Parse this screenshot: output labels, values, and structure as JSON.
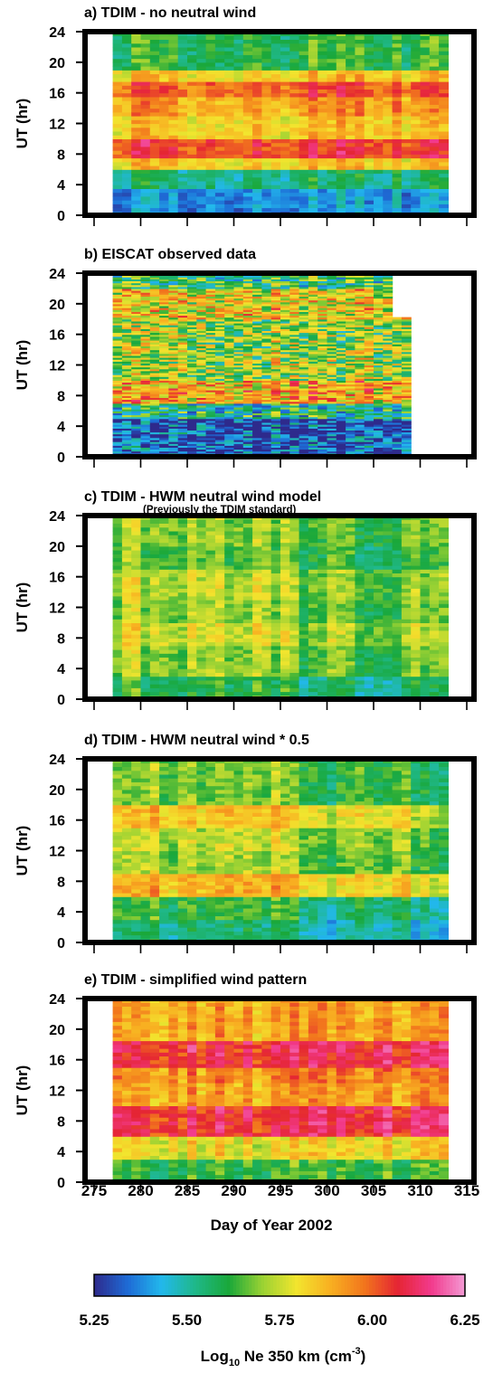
{
  "chart_data": [
    {
      "type": "heatmap",
      "title": "a)  TDIM - no neutral wind",
      "subtitle": "",
      "ylabel": "UT  (hr)",
      "xlim": [
        275,
        315
      ],
      "ylim": [
        0,
        24
      ],
      "day_range": [
        277,
        313
      ],
      "yticks": [
        "0",
        "4",
        "8",
        "12",
        "16",
        "20",
        "24"
      ],
      "bands": [
        {
          "from": 0,
          "to": 3.5,
          "level": 5.4
        },
        {
          "from": 3.5,
          "to": 6,
          "level": 5.55
        },
        {
          "from": 6,
          "to": 7.5,
          "level": 5.85
        },
        {
          "from": 7.5,
          "to": 10,
          "level": 6.05
        },
        {
          "from": 10,
          "to": 13,
          "level": 5.85
        },
        {
          "from": 13,
          "to": 15.5,
          "level": 5.92
        },
        {
          "from": 15.5,
          "to": 17.5,
          "level": 6.02
        },
        {
          "from": 17.5,
          "to": 19,
          "level": 5.85
        },
        {
          "from": 19,
          "to": 24,
          "level": 5.62
        }
      ],
      "observed_gap": false
    },
    {
      "type": "heatmap",
      "title": "b)  EISCAT  observed data",
      "subtitle": "",
      "ylabel": "UT  (hr)",
      "xlim": [
        275,
        315
      ],
      "ylim": [
        0,
        24
      ],
      "day_range": [
        277,
        309
      ],
      "yticks": [
        "0",
        "4",
        "8",
        "12",
        "16",
        "20",
        "24"
      ],
      "bands": [
        {
          "from": 0,
          "to": 5,
          "level": 5.32
        },
        {
          "from": 5,
          "to": 7,
          "level": 5.55
        },
        {
          "from": 7,
          "to": 10,
          "level": 5.88
        },
        {
          "from": 10,
          "to": 14,
          "level": 5.72
        },
        {
          "from": 14,
          "to": 18,
          "level": 5.7
        },
        {
          "from": 18,
          "to": 22,
          "level": 5.82
        },
        {
          "from": 22,
          "to": 24,
          "level": 5.6
        }
      ],
      "observed_gap": true
    },
    {
      "type": "heatmap",
      "title": "c)  TDIM - HWM neutral wind model",
      "subtitle": "(Previously the TDIM standard)",
      "ylabel": "UT  (hr)",
      "xlim": [
        275,
        315
      ],
      "ylim": [
        0,
        24
      ],
      "day_range": [
        277,
        313
      ],
      "yticks": [
        "0",
        "4",
        "8",
        "12",
        "16",
        "20",
        "24"
      ],
      "bands": [
        {
          "from": 0,
          "to": 3,
          "level": 5.62
        },
        {
          "from": 3,
          "to": 7,
          "level": 5.72
        },
        {
          "from": 7,
          "to": 10,
          "level": 5.78
        },
        {
          "from": 10,
          "to": 13,
          "level": 5.72
        },
        {
          "from": 13,
          "to": 17,
          "level": 5.76
        },
        {
          "from": 17,
          "to": 20,
          "level": 5.68
        },
        {
          "from": 20,
          "to": 24,
          "level": 5.72
        }
      ],
      "observed_gap": false
    },
    {
      "type": "heatmap",
      "title": "d)  TDIM - HWM neutral wind * 0.5",
      "subtitle": "",
      "ylabel": "UT  (hr)",
      "xlim": [
        275,
        315
      ],
      "ylim": [
        0,
        24
      ],
      "day_range": [
        277,
        313
      ],
      "yticks": [
        "0",
        "4",
        "8",
        "12",
        "16",
        "20",
        "24"
      ],
      "bands": [
        {
          "from": 0,
          "to": 3,
          "level": 5.55
        },
        {
          "from": 3,
          "to": 6,
          "level": 5.62
        },
        {
          "from": 6,
          "to": 9,
          "level": 5.88
        },
        {
          "from": 9,
          "to": 12,
          "level": 5.72
        },
        {
          "from": 12,
          "to": 15,
          "level": 5.75
        },
        {
          "from": 15,
          "to": 18,
          "level": 5.85
        },
        {
          "from": 18,
          "to": 24,
          "level": 5.68
        }
      ],
      "observed_gap": false
    },
    {
      "type": "heatmap",
      "title": "e)  TDIM - simplified wind pattern",
      "subtitle": "",
      "ylabel": "UT  (hr)",
      "xlim": [
        275,
        315
      ],
      "ylim": [
        0,
        24
      ],
      "day_range": [
        277,
        313
      ],
      "yticks": [
        "0",
        "4",
        "8",
        "12",
        "16",
        "20",
        "24"
      ],
      "bands": [
        {
          "from": 0,
          "to": 3,
          "level": 5.62
        },
        {
          "from": 3,
          "to": 6,
          "level": 5.8
        },
        {
          "from": 6,
          "to": 10,
          "level": 6.08
        },
        {
          "from": 10,
          "to": 13,
          "level": 5.9
        },
        {
          "from": 13,
          "to": 15,
          "level": 5.94
        },
        {
          "from": 15,
          "to": 18.5,
          "level": 6.08
        },
        {
          "from": 18.5,
          "to": 24,
          "level": 5.9
        }
      ],
      "observed_gap": false
    }
  ],
  "x_axis": {
    "label": "Day of Year 2002",
    "ticks": [
      "275",
      "280",
      "285",
      "290",
      "295",
      "300",
      "305",
      "310",
      "315"
    ]
  },
  "colorbar": {
    "label_main": "Log",
    "label_sub": "10",
    "label_rest": " Ne  350 km  (cm",
    "label_sup": "-3",
    "label_close": ")",
    "range": [
      5.25,
      6.25
    ],
    "ticks": [
      "5.25",
      "5.50",
      "5.75",
      "6.00",
      "6.25"
    ],
    "colors": [
      "#2e2a8c",
      "#1e6bd6",
      "#22b8ec",
      "#1fb889",
      "#1aa83a",
      "#9bd233",
      "#f2e52e",
      "#f8b021",
      "#f2771d",
      "#e52533",
      "#f23a8c",
      "#f39ad4"
    ]
  }
}
